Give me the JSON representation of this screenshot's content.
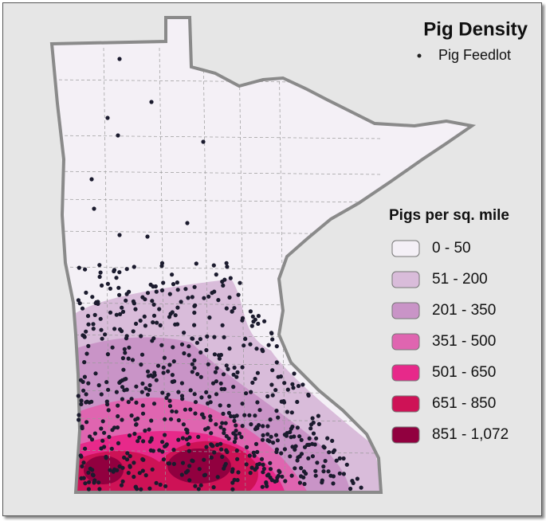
{
  "title": "Pig Density",
  "point_legend": "Pig Feedlot",
  "legend": {
    "title": "Pigs per sq. mile",
    "classes": [
      {
        "label": "0 - 50",
        "color": "#f4f0f6"
      },
      {
        "label": "51 - 200",
        "color": "#d9bcda"
      },
      {
        "label": "201 - 350",
        "color": "#c994c7"
      },
      {
        "label": "351 - 500",
        "color": "#df65b0"
      },
      {
        "label": "501 - 650",
        "color": "#e7298a"
      },
      {
        "label": "651 - 850",
        "color": "#ce1256"
      },
      {
        "label": "851 - 1,072",
        "color": "#91003f"
      }
    ]
  }
}
